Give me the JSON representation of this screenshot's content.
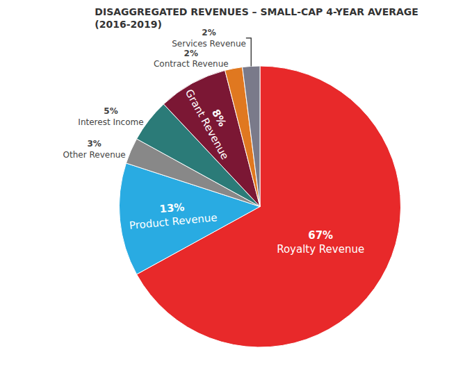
{
  "chart_data": {
    "type": "pie",
    "title": "DISAGGREGATED REVENUES – SMALL-CAP 4-YEAR AVERAGE",
    "subtitle": "(2016-2019)",
    "categories": [
      "Royalty Revenue",
      "Product Revenue",
      "Other Revenue",
      "Interest Income",
      "Grant Revenue",
      "Contract Revenue",
      "Services Revenue"
    ],
    "values": [
      67,
      13,
      3,
      5,
      8,
      2,
      2
    ],
    "value_labels": [
      "67%",
      "13%",
      "3%",
      "5%",
      "8%",
      "2%",
      "2%"
    ],
    "colors": [
      "#E8292A",
      "#29ABE2",
      "#888888",
      "#2B7B78",
      "#7B1734",
      "#E07820",
      "#7A7A8A"
    ],
    "data_labels": true
  }
}
